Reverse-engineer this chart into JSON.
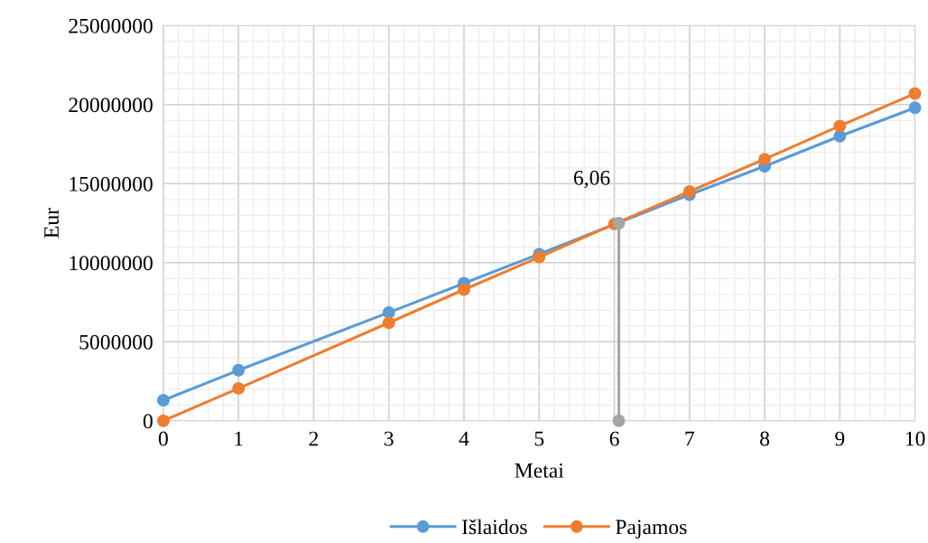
{
  "chart_data": {
    "type": "line",
    "xlabel": "Metai",
    "ylabel": "Eur",
    "series": [
      {
        "name": "Išlaidos",
        "color": "#5b9bd5",
        "x": [
          0,
          1,
          3,
          4,
          5,
          7,
          8,
          9,
          10
        ],
        "values": [
          1300000,
          3200000,
          6850000,
          8700000,
          10550000,
          14300000,
          16100000,
          18000000,
          19800000
        ]
      },
      {
        "name": "Pajamos",
        "color": "#ed7d31",
        "x": [
          0,
          1,
          3,
          4,
          5,
          6,
          7,
          8,
          9,
          10
        ],
        "values": [
          0,
          2050000,
          6200000,
          8300000,
          10350000,
          12450000,
          14500000,
          16550000,
          18650000,
          20700000
        ]
      },
      {
        "color": "#a5a5a5",
        "x": [
          6.06,
          6.06
        ],
        "values": [
          0,
          12500000
        ]
      }
    ],
    "annotations": [
      "6,06"
    ],
    "xlim": [
      0,
      10
    ],
    "xticks": [
      0,
      1,
      2,
      3,
      4,
      5,
      6,
      7,
      8,
      9,
      10
    ],
    "ylim": [
      0,
      25000000
    ],
    "yticks": [
      0,
      5000000,
      10000000,
      15000000,
      20000000,
      25000000
    ],
    "grid": true,
    "legend": "bottom",
    "marker": "circle",
    "line_style": "solid"
  }
}
